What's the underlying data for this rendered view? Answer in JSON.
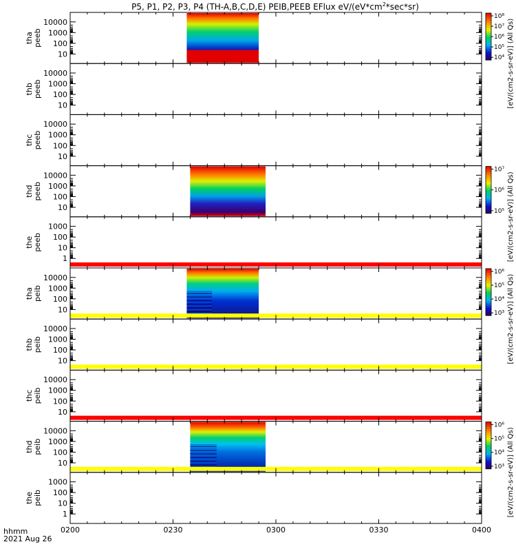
{
  "chart_data": {
    "type": "heatmap",
    "title": "P5, P1, P2, P3, P4 (TH-A,B,C,D,E) PEIB,PEEB EFlux eV/(eV*cm",
    "title_sup": "2",
    "title_tail": "*sec*sr)",
    "x_ticks": [
      "0200",
      "0230",
      "0300",
      "0330",
      "0400"
    ],
    "xlabel_line1": "hhmm",
    "xlabel_line2": "2021 Aug 26",
    "panels": [
      {
        "label": [
          "tha",
          "peeb"
        ],
        "yticks": [
          "10000",
          "1000",
          "100",
          "10"
        ],
        "data": true,
        "start": "0234",
        "end": "0255"
      },
      {
        "label": [
          "thb",
          "peeb"
        ],
        "yticks": [
          "10000",
          "1000",
          "100",
          "10"
        ],
        "data": false
      },
      {
        "label": [
          "thc",
          "peeb"
        ],
        "yticks": [
          "10000",
          "1000",
          "100",
          "10"
        ],
        "data": false
      },
      {
        "label": [
          "thd",
          "peeb"
        ],
        "yticks": [
          "10000",
          "1000",
          "100",
          "10"
        ],
        "data": true,
        "start": "0235",
        "end": "0257"
      },
      {
        "label": [
          "the",
          "peeb"
        ],
        "yticks": [
          "1000",
          "100",
          "10",
          "1"
        ],
        "data": false,
        "band": "red"
      },
      {
        "label": [
          "tha",
          "peib"
        ],
        "yticks": [
          "10000",
          "1000",
          "100",
          "10"
        ],
        "data": true,
        "start": "0234",
        "end": "0255",
        "band": "yellow"
      },
      {
        "label": [
          "thb",
          "peib"
        ],
        "yticks": [
          "10000",
          "1000",
          "100",
          "10"
        ],
        "data": false,
        "band": "yellow"
      },
      {
        "label": [
          "thc",
          "peib"
        ],
        "yticks": [
          "10000",
          "1000",
          "100",
          "10"
        ],
        "data": false,
        "band": "red"
      },
      {
        "label": [
          "thd",
          "peib"
        ],
        "yticks": [
          "10000",
          "1000",
          "100",
          "10"
        ],
        "data": true,
        "start": "0235",
        "end": "0257",
        "band": "yellow"
      },
      {
        "label": [
          "the",
          "peib"
        ],
        "yticks": [
          "1000",
          "100",
          "10",
          "1"
        ],
        "data": false
      }
    ],
    "colorbars": [
      {
        "ticks": [
          "10⁸",
          "10⁷",
          "10⁶",
          "10⁵",
          "10⁴"
        ],
        "label": "[eV/(cm2-s-sr-eV)] (All Qs)"
      },
      {
        "ticks": [
          "10⁷",
          "10⁶",
          "10⁵"
        ],
        "label": "[eV/(cm2-s-sr-eV)] (All Qs)"
      },
      {
        "ticks": [
          "10⁶",
          "10⁵",
          "10⁴",
          "10³"
        ],
        "label": "[eV/(cm2-s-sr-eV)] (All Qs)"
      },
      {
        "ticks": [
          "10⁶",
          "10⁵",
          "10⁴",
          "10³"
        ],
        "label": "[eV/(cm2-s-sr-eV)] (All Qs)"
      }
    ]
  }
}
